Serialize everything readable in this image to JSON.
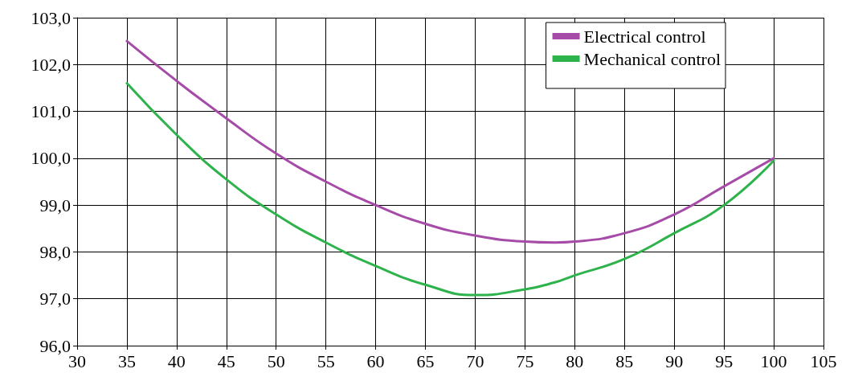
{
  "chart_data": {
    "type": "line",
    "xlim": [
      30,
      105
    ],
    "xticks": [
      30,
      35,
      40,
      45,
      50,
      55,
      60,
      65,
      70,
      75,
      80,
      85,
      90,
      95,
      100,
      105
    ],
    "ylim": [
      96,
      103
    ],
    "yticks": [
      {
        "value": 96,
        "label": "96,0"
      },
      {
        "value": 97,
        "label": "97,0"
      },
      {
        "value": 98,
        "label": "98,0"
      },
      {
        "value": 99,
        "label": "99,0"
      },
      {
        "value": 100,
        "label": "100,0"
      },
      {
        "value": 101,
        "label": "101,0"
      },
      {
        "value": 102,
        "label": "102,0"
      },
      {
        "value": 103,
        "label": "103,0"
      }
    ],
    "x": [
      35,
      40,
      45,
      50,
      55,
      60,
      65,
      70,
      75,
      78,
      80,
      85,
      90,
      95,
      100
    ],
    "series": [
      {
        "name": "Electrical control",
        "color": "#a64ca8",
        "values": [
          102.5,
          101.65,
          100.85,
          100.1,
          99.5,
          99.0,
          98.6,
          98.35,
          98.22,
          98.2,
          98.22,
          98.4,
          98.8,
          99.4,
          100.0
        ]
      },
      {
        "name": "Mechanical control",
        "color": "#2eb34c",
        "values": [
          101.6,
          100.5,
          99.55,
          98.8,
          98.2,
          97.7,
          97.3,
          97.08,
          97.2,
          97.35,
          97.5,
          97.85,
          98.4,
          99.0,
          99.95
        ]
      }
    ],
    "grid": true,
    "legend": "top right",
    "marker": "none",
    "line_style": "solid"
  }
}
